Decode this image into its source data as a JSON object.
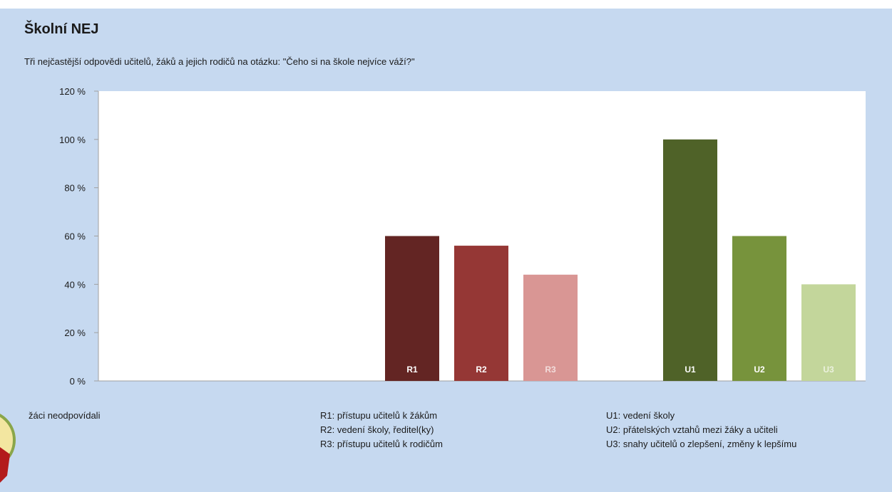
{
  "header": {
    "title": "Školní NEJ",
    "subtitle": "Tři nejčastější odpovědi učitelů, žáků a jejich rodičů na otázku: \"Čeho si na škole nejvíce váží?\""
  },
  "chart_data": {
    "type": "bar",
    "ylim": [
      0,
      120
    ],
    "yticks": [
      "0 %",
      "20 %",
      "40 %",
      "60 %",
      "80 %",
      "100 %",
      "120 %"
    ],
    "ytick_values": [
      0,
      20,
      40,
      60,
      80,
      100,
      120
    ],
    "grid": false,
    "bars": [
      {
        "label": "R1",
        "value": 60,
        "color": "#632523",
        "group": 1
      },
      {
        "label": "R2",
        "value": 56,
        "color": "#953735",
        "group": 1
      },
      {
        "label": "R3",
        "value": 44,
        "color": "#d99694",
        "group": 1
      },
      {
        "label": "U1",
        "value": 100,
        "color": "#4f6228",
        "group": 2
      },
      {
        "label": "U2",
        "value": 60,
        "color": "#77933c",
        "group": 2
      },
      {
        "label": "U3",
        "value": 40,
        "color": "#c3d69b",
        "group": 2
      }
    ]
  },
  "legend": {
    "zaci": [
      "žáci neodpovídali"
    ],
    "rodice": [
      "R1: přístupu učitelů k žákům",
      "R2: vedení školy, ředitel(ky)",
      "R3: přístupu učitelů k rodičům"
    ],
    "ucitele": [
      "U1: vedení školy",
      "U2: přátelských vztahů mezi žáky a učiteli",
      "U3: snahy učitelů o zlepšení, změny k lepšímu"
    ]
  }
}
